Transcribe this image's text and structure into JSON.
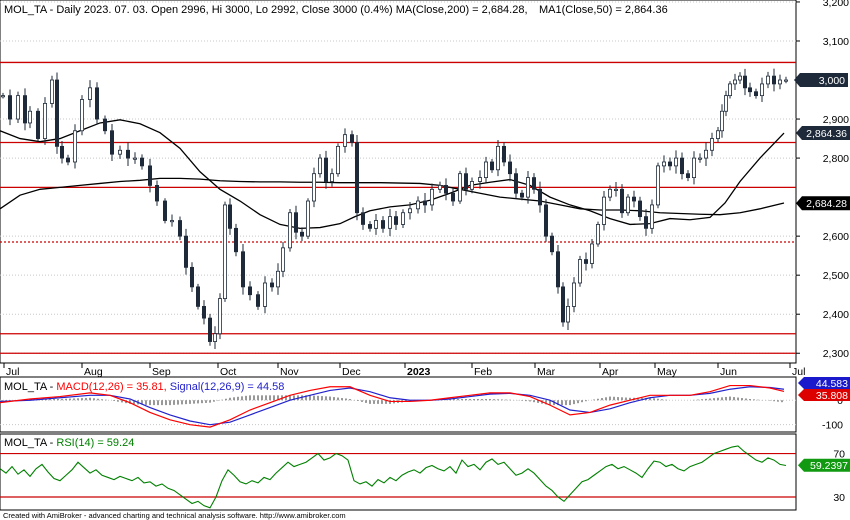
{
  "chart_data": {
    "type": "candlestick",
    "symbol": "MOL_TA",
    "headers": {
      "price": {
        "line1": "MOL_TA - Daily 2023. 07. 03. Open 2996, Hi 3000, Lo 2992, Close 3000 (0.4%) MA(Close,200) = 2,684.28,",
        "line2": "MA1(Close,50) = 2,864.36"
      },
      "macd": {
        "prefix": "MOL_TA - ",
        "macd_label": "MACD(12,26) = 35.81,",
        "signal_label": "Signal(12,26,9) = 44.58"
      },
      "rsi": {
        "prefix": "MOL_TA - ",
        "rsi_label": "RSI(14) = 59.24"
      }
    },
    "x_labels": [
      "Jul",
      "Aug",
      "Sep",
      "Oct",
      "Nov",
      "Dec",
      "2023",
      "Feb",
      "Mar",
      "Apr",
      "May",
      "Jun",
      "Jul"
    ],
    "price_axis": {
      "ticks": [
        "3,200",
        "3,100",
        "2,900",
        "2,800",
        "2,600",
        "2,500",
        "2,400",
        "2,300"
      ],
      "range": [
        2275,
        3205
      ]
    },
    "last_price": {
      "label": "3,000",
      "value": 3000
    },
    "ma50": {
      "label": "2,864.36",
      "value": 2864.36
    },
    "ma200": {
      "label": "2,684.28",
      "value": 2684.28
    },
    "horizontal_lines": [
      3045,
      2840,
      2725,
      2585,
      2350,
      2300
    ],
    "ma200_points": [
      [
        0,
        2670
      ],
      [
        20,
        2705
      ],
      [
        40,
        2720
      ],
      [
        60,
        2725
      ],
      [
        80,
        2730
      ],
      [
        100,
        2735
      ],
      [
        120,
        2740
      ],
      [
        140,
        2743
      ],
      [
        160,
        2748
      ],
      [
        180,
        2748
      ],
      [
        200,
        2746
      ],
      [
        220,
        2742
      ],
      [
        240,
        2740
      ],
      [
        260,
        2739
      ],
      [
        280,
        2739
      ],
      [
        300,
        2738
      ],
      [
        320,
        2738
      ],
      [
        340,
        2737
      ],
      [
        360,
        2737
      ],
      [
        380,
        2737
      ],
      [
        400,
        2736
      ],
      [
        420,
        2735
      ],
      [
        440,
        2730
      ],
      [
        460,
        2720
      ],
      [
        480,
        2710
      ],
      [
        500,
        2700
      ],
      [
        520,
        2695
      ],
      [
        540,
        2690
      ],
      [
        560,
        2680
      ],
      [
        580,
        2670
      ],
      [
        600,
        2667
      ],
      [
        620,
        2667
      ],
      [
        640,
        2665
      ],
      [
        660,
        2660
      ],
      [
        680,
        2658
      ],
      [
        700,
        2656
      ],
      [
        720,
        2655
      ],
      [
        740,
        2660
      ],
      [
        760,
        2670
      ],
      [
        784,
        2685
      ]
    ],
    "ma50_points": [
      [
        0,
        2870
      ],
      [
        20,
        2850
      ],
      [
        40,
        2842
      ],
      [
        60,
        2850
      ],
      [
        80,
        2870
      ],
      [
        100,
        2890
      ],
      [
        120,
        2898
      ],
      [
        140,
        2888
      ],
      [
        160,
        2865
      ],
      [
        180,
        2825
      ],
      [
        200,
        2765
      ],
      [
        220,
        2720
      ],
      [
        240,
        2690
      ],
      [
        260,
        2655
      ],
      [
        280,
        2630
      ],
      [
        300,
        2620
      ],
      [
        320,
        2622
      ],
      [
        340,
        2632
      ],
      [
        355,
        2650
      ],
      [
        370,
        2665
      ],
      [
        390,
        2675
      ],
      [
        410,
        2680
      ],
      [
        430,
        2692
      ],
      [
        450,
        2710
      ],
      [
        470,
        2730
      ],
      [
        490,
        2738
      ],
      [
        510,
        2745
      ],
      [
        530,
        2730
      ],
      [
        550,
        2700
      ],
      [
        570,
        2680
      ],
      [
        590,
        2665
      ],
      [
        610,
        2645
      ],
      [
        630,
        2630
      ],
      [
        650,
        2632
      ],
      [
        670,
        2645
      ],
      [
        690,
        2642
      ],
      [
        710,
        2648
      ],
      [
        725,
        2685
      ],
      [
        740,
        2740
      ],
      [
        760,
        2800
      ],
      [
        784,
        2864
      ]
    ],
    "candle_points": [
      [
        3,
        2960
      ],
      [
        10,
        2900
      ],
      [
        18,
        2960
      ],
      [
        25,
        2890
      ],
      [
        30,
        2920
      ],
      [
        38,
        2850
      ],
      [
        45,
        2940
      ],
      [
        52,
        3000
      ],
      [
        57,
        2830
      ],
      [
        62,
        2800
      ],
      [
        68,
        2790
      ],
      [
        75,
        2870
      ],
      [
        82,
        2950
      ],
      [
        90,
        2980
      ],
      [
        97,
        2900
      ],
      [
        105,
        2870
      ],
      [
        112,
        2810
      ],
      [
        120,
        2820
      ],
      [
        128,
        2800
      ],
      [
        135,
        2800
      ],
      [
        142,
        2780
      ],
      [
        150,
        2730
      ],
      [
        157,
        2690
      ],
      [
        165,
        2640
      ],
      [
        172,
        2640
      ],
      [
        180,
        2600
      ],
      [
        186,
        2520
      ],
      [
        192,
        2470
      ],
      [
        198,
        2420
      ],
      [
        204,
        2390
      ],
      [
        210,
        2330
      ],
      [
        215,
        2350
      ],
      [
        220,
        2440
      ],
      [
        225,
        2680
      ],
      [
        230,
        2620
      ],
      [
        236,
        2560
      ],
      [
        243,
        2470
      ],
      [
        250,
        2450
      ],
      [
        258,
        2420
      ],
      [
        265,
        2480
      ],
      [
        272,
        2470
      ],
      [
        278,
        2510
      ],
      [
        283,
        2570
      ],
      [
        290,
        2660
      ],
      [
        296,
        2610
      ],
      [
        302,
        2600
      ],
      [
        308,
        2690
      ],
      [
        314,
        2760
      ],
      [
        320,
        2800
      ],
      [
        326,
        2740
      ],
      [
        332,
        2760
      ],
      [
        338,
        2830
      ],
      [
        345,
        2860
      ],
      [
        352,
        2840
      ],
      [
        357,
        2660
      ],
      [
        363,
        2630
      ],
      [
        370,
        2620
      ],
      [
        376,
        2640
      ],
      [
        383,
        2620
      ],
      [
        390,
        2650
      ],
      [
        396,
        2630
      ],
      [
        403,
        2660
      ],
      [
        410,
        2670
      ],
      [
        418,
        2690
      ],
      [
        425,
        2680
      ],
      [
        432,
        2720
      ],
      [
        440,
        2730
      ],
      [
        446,
        2710
      ],
      [
        453,
        2690
      ],
      [
        460,
        2760
      ],
      [
        466,
        2720
      ],
      [
        472,
        2740
      ],
      [
        480,
        2750
      ],
      [
        486,
        2790
      ],
      [
        492,
        2770
      ],
      [
        498,
        2830
      ],
      [
        504,
        2790
      ],
      [
        510,
        2760
      ],
      [
        516,
        2710
      ],
      [
        522,
        2700
      ],
      [
        528,
        2750
      ],
      [
        534,
        2720
      ],
      [
        540,
        2680
      ],
      [
        546,
        2600
      ],
      [
        552,
        2560
      ],
      [
        558,
        2470
      ],
      [
        563,
        2380
      ],
      [
        568,
        2420
      ],
      [
        574,
        2480
      ],
      [
        580,
        2540
      ],
      [
        586,
        2530
      ],
      [
        592,
        2580
      ],
      [
        598,
        2630
      ],
      [
        604,
        2700
      ],
      [
        610,
        2720
      ],
      [
        616,
        2720
      ],
      [
        622,
        2660
      ],
      [
        628,
        2700
      ],
      [
        634,
        2690
      ],
      [
        640,
        2650
      ],
      [
        646,
        2620
      ],
      [
        652,
        2680
      ],
      [
        658,
        2780
      ],
      [
        664,
        2790
      ],
      [
        670,
        2780
      ],
      [
        676,
        2800
      ],
      [
        682,
        2760
      ],
      [
        688,
        2750
      ],
      [
        694,
        2800
      ],
      [
        700,
        2800
      ],
      [
        706,
        2820
      ],
      [
        712,
        2850
      ],
      [
        718,
        2870
      ],
      [
        722,
        2920
      ],
      [
        726,
        2960
      ],
      [
        730,
        2990
      ],
      [
        735,
        3000
      ],
      [
        740,
        3010
      ],
      [
        745,
        2980
      ],
      [
        750,
        2970
      ],
      [
        756,
        2960
      ],
      [
        762,
        2990
      ],
      [
        768,
        3010
      ],
      [
        774,
        2990
      ],
      [
        780,
        3000
      ],
      [
        786,
        3000
      ]
    ],
    "macd_axis": {
      "ticks": [
        "0",
        "-100"
      ],
      "range": [
        -130,
        95
      ]
    },
    "macd_points": [
      [
        0,
        -10
      ],
      [
        30,
        5
      ],
      [
        60,
        15
      ],
      [
        90,
        30
      ],
      [
        110,
        20
      ],
      [
        130,
        -10
      ],
      [
        150,
        -50
      ],
      [
        170,
        -80
      ],
      [
        190,
        -100
      ],
      [
        210,
        -110
      ],
      [
        230,
        -80
      ],
      [
        250,
        -40
      ],
      [
        270,
        -10
      ],
      [
        290,
        20
      ],
      [
        310,
        40
      ],
      [
        330,
        55
      ],
      [
        350,
        55
      ],
      [
        370,
        20
      ],
      [
        390,
        -5
      ],
      [
        410,
        -5
      ],
      [
        430,
        0
      ],
      [
        450,
        10
      ],
      [
        470,
        20
      ],
      [
        490,
        30
      ],
      [
        510,
        30
      ],
      [
        530,
        15
      ],
      [
        550,
        -20
      ],
      [
        570,
        -60
      ],
      [
        590,
        -50
      ],
      [
        610,
        -20
      ],
      [
        630,
        0
      ],
      [
        650,
        20
      ],
      [
        670,
        20
      ],
      [
        690,
        20
      ],
      [
        710,
        35
      ],
      [
        730,
        60
      ],
      [
        750,
        60
      ],
      [
        770,
        50
      ],
      [
        784,
        36
      ]
    ],
    "signal_points": [
      [
        0,
        -5
      ],
      [
        30,
        0
      ],
      [
        60,
        10
      ],
      [
        90,
        20
      ],
      [
        110,
        20
      ],
      [
        130,
        5
      ],
      [
        150,
        -30
      ],
      [
        170,
        -60
      ],
      [
        190,
        -85
      ],
      [
        210,
        -100
      ],
      [
        230,
        -90
      ],
      [
        250,
        -60
      ],
      [
        270,
        -30
      ],
      [
        290,
        0
      ],
      [
        310,
        20
      ],
      [
        330,
        40
      ],
      [
        350,
        50
      ],
      [
        370,
        35
      ],
      [
        390,
        10
      ],
      [
        410,
        0
      ],
      [
        430,
        0
      ],
      [
        450,
        5
      ],
      [
        470,
        15
      ],
      [
        490,
        25
      ],
      [
        510,
        28
      ],
      [
        530,
        20
      ],
      [
        550,
        0
      ],
      [
        570,
        -40
      ],
      [
        590,
        -50
      ],
      [
        610,
        -35
      ],
      [
        630,
        -10
      ],
      [
        650,
        10
      ],
      [
        670,
        20
      ],
      [
        690,
        20
      ],
      [
        710,
        28
      ],
      [
        730,
        45
      ],
      [
        750,
        55
      ],
      [
        770,
        52
      ],
      [
        784,
        45
      ]
    ],
    "macd_badges": [
      {
        "label": "44.583",
        "value": 44.58
      },
      {
        "label": "35.808",
        "value": 35.81
      }
    ],
    "rsi_axis": {
      "ticks": [
        "70",
        "30"
      ],
      "range": [
        18,
        88
      ],
      "levels": [
        70,
        30
      ]
    },
    "rsi_badge": {
      "label": "59.2397",
      "value": 59.24
    },
    "rsi_points": [
      [
        0,
        56
      ],
      [
        6,
        52
      ],
      [
        12,
        58
      ],
      [
        18,
        51
      ],
      [
        24,
        55
      ],
      [
        30,
        49
      ],
      [
        36,
        56
      ],
      [
        42,
        60
      ],
      [
        48,
        53
      ],
      [
        54,
        47
      ],
      [
        60,
        45
      ],
      [
        66,
        50
      ],
      [
        72,
        55
      ],
      [
        78,
        62
      ],
      [
        84,
        57
      ],
      [
        90,
        52
      ],
      [
        96,
        55
      ],
      [
        102,
        50
      ],
      [
        108,
        48
      ],
      [
        114,
        46
      ],
      [
        120,
        49
      ],
      [
        126,
        47
      ],
      [
        132,
        45
      ],
      [
        138,
        48
      ],
      [
        144,
        43
      ],
      [
        150,
        44
      ],
      [
        156,
        40
      ],
      [
        162,
        42
      ],
      [
        168,
        38
      ],
      [
        174,
        36
      ],
      [
        180,
        32
      ],
      [
        186,
        28
      ],
      [
        192,
        24
      ],
      [
        198,
        26
      ],
      [
        204,
        22
      ],
      [
        210,
        20
      ],
      [
        216,
        30
      ],
      [
        222,
        45
      ],
      [
        228,
        55
      ],
      [
        234,
        50
      ],
      [
        240,
        44
      ],
      [
        246,
        42
      ],
      [
        252,
        45
      ],
      [
        258,
        43
      ],
      [
        264,
        48
      ],
      [
        270,
        46
      ],
      [
        276,
        52
      ],
      [
        282,
        57
      ],
      [
        288,
        62
      ],
      [
        294,
        58
      ],
      [
        300,
        60
      ],
      [
        306,
        62
      ],
      [
        312,
        66
      ],
      [
        318,
        70
      ],
      [
        324,
        64
      ],
      [
        330,
        66
      ],
      [
        336,
        70
      ],
      [
        342,
        68
      ],
      [
        348,
        64
      ],
      [
        354,
        45
      ],
      [
        360,
        42
      ],
      [
        366,
        44
      ],
      [
        372,
        40
      ],
      [
        378,
        46
      ],
      [
        384,
        43
      ],
      [
        390,
        48
      ],
      [
        396,
        45
      ],
      [
        402,
        50
      ],
      [
        408,
        53
      ],
      [
        414,
        55
      ],
      [
        420,
        52
      ],
      [
        426,
        57
      ],
      [
        432,
        59
      ],
      [
        438,
        56
      ],
      [
        444,
        54
      ],
      [
        450,
        58
      ],
      [
        456,
        52
      ],
      [
        462,
        64
      ],
      [
        468,
        58
      ],
      [
        474,
        60
      ],
      [
        480,
        55
      ],
      [
        486,
        62
      ],
      [
        492,
        65
      ],
      [
        498,
        60
      ],
      [
        504,
        62
      ],
      [
        510,
        56
      ],
      [
        516,
        50
      ],
      [
        522,
        52
      ],
      [
        528,
        56
      ],
      [
        534,
        52
      ],
      [
        540,
        46
      ],
      [
        546,
        40
      ],
      [
        552,
        36
      ],
      [
        558,
        30
      ],
      [
        564,
        26
      ],
      [
        570,
        32
      ],
      [
        576,
        38
      ],
      [
        582,
        44
      ],
      [
        588,
        46
      ],
      [
        594,
        50
      ],
      [
        600,
        54
      ],
      [
        606,
        58
      ],
      [
        612,
        60
      ],
      [
        618,
        56
      ],
      [
        624,
        58
      ],
      [
        630,
        55
      ],
      [
        636,
        52
      ],
      [
        642,
        48
      ],
      [
        648,
        56
      ],
      [
        654,
        63
      ],
      [
        660,
        62
      ],
      [
        666,
        58
      ],
      [
        672,
        60
      ],
      [
        678,
        56
      ],
      [
        684,
        54
      ],
      [
        690,
        58
      ],
      [
        696,
        60
      ],
      [
        702,
        62
      ],
      [
        708,
        66
      ],
      [
        714,
        70
      ],
      [
        720,
        72
      ],
      [
        726,
        74
      ],
      [
        732,
        76
      ],
      [
        738,
        77
      ],
      [
        744,
        72
      ],
      [
        750,
        68
      ],
      [
        756,
        64
      ],
      [
        762,
        62
      ],
      [
        768,
        66
      ],
      [
        774,
        64
      ],
      [
        780,
        60
      ],
      [
        786,
        59
      ]
    ],
    "colors": {
      "macd": "#ff0000",
      "signal": "#2222cc",
      "rsi": "#008000",
      "level": "#cc0000",
      "price_badge": "#1e2a3a",
      "macd_badge_signal": "#1a1acc",
      "macd_badge_macd": "#dd0000",
      "rsi_badge": "#119911"
    },
    "grid": true,
    "footer": "Created with AmiBroker - advanced charting and technical analysis software. http://www.amibroker.com"
  }
}
